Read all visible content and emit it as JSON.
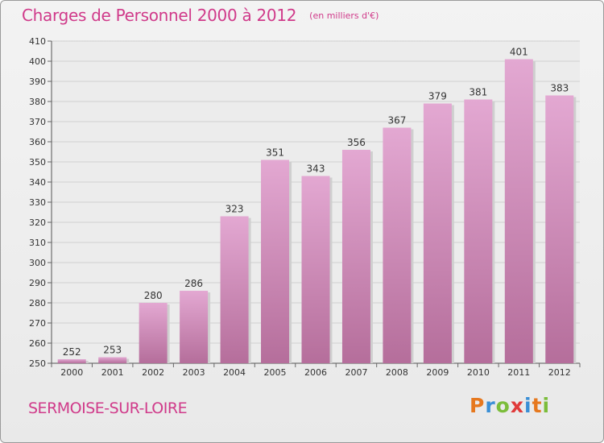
{
  "header": {
    "title": "Charges de Personnel 2000 à 2012",
    "unit": "(en milliers d'€)"
  },
  "footer": {
    "commune": "SERMOISE-SUR-LOIRE",
    "logo_text": "Proxiti",
    "logo_colors": [
      "#e6781e",
      "#3a8fd6",
      "#7bbd3a",
      "#e03a3a",
      "#3a8fd6",
      "#e6781e",
      "#7bbd3a"
    ]
  },
  "colors": {
    "accent": "#d03a8a",
    "bar_top": "#e3a8d2",
    "bar_bottom": "#b56e9b",
    "grid": "#cfcfcf"
  },
  "chart_data": {
    "type": "bar",
    "title": "Charges de Personnel 2000 à 2012",
    "subtitle": "(en milliers d'€)",
    "categories": [
      "2000",
      "2001",
      "2002",
      "2003",
      "2004",
      "2005",
      "2006",
      "2007",
      "2008",
      "2009",
      "2010",
      "2011",
      "2012"
    ],
    "values": [
      252,
      253,
      280,
      286,
      323,
      351,
      343,
      356,
      367,
      379,
      381,
      401,
      383
    ],
    "ylim": [
      250,
      410
    ],
    "yticks": [
      250,
      260,
      270,
      280,
      290,
      300,
      310,
      320,
      330,
      340,
      350,
      360,
      370,
      380,
      390,
      400,
      410
    ],
    "grid": true,
    "legend": "none"
  }
}
